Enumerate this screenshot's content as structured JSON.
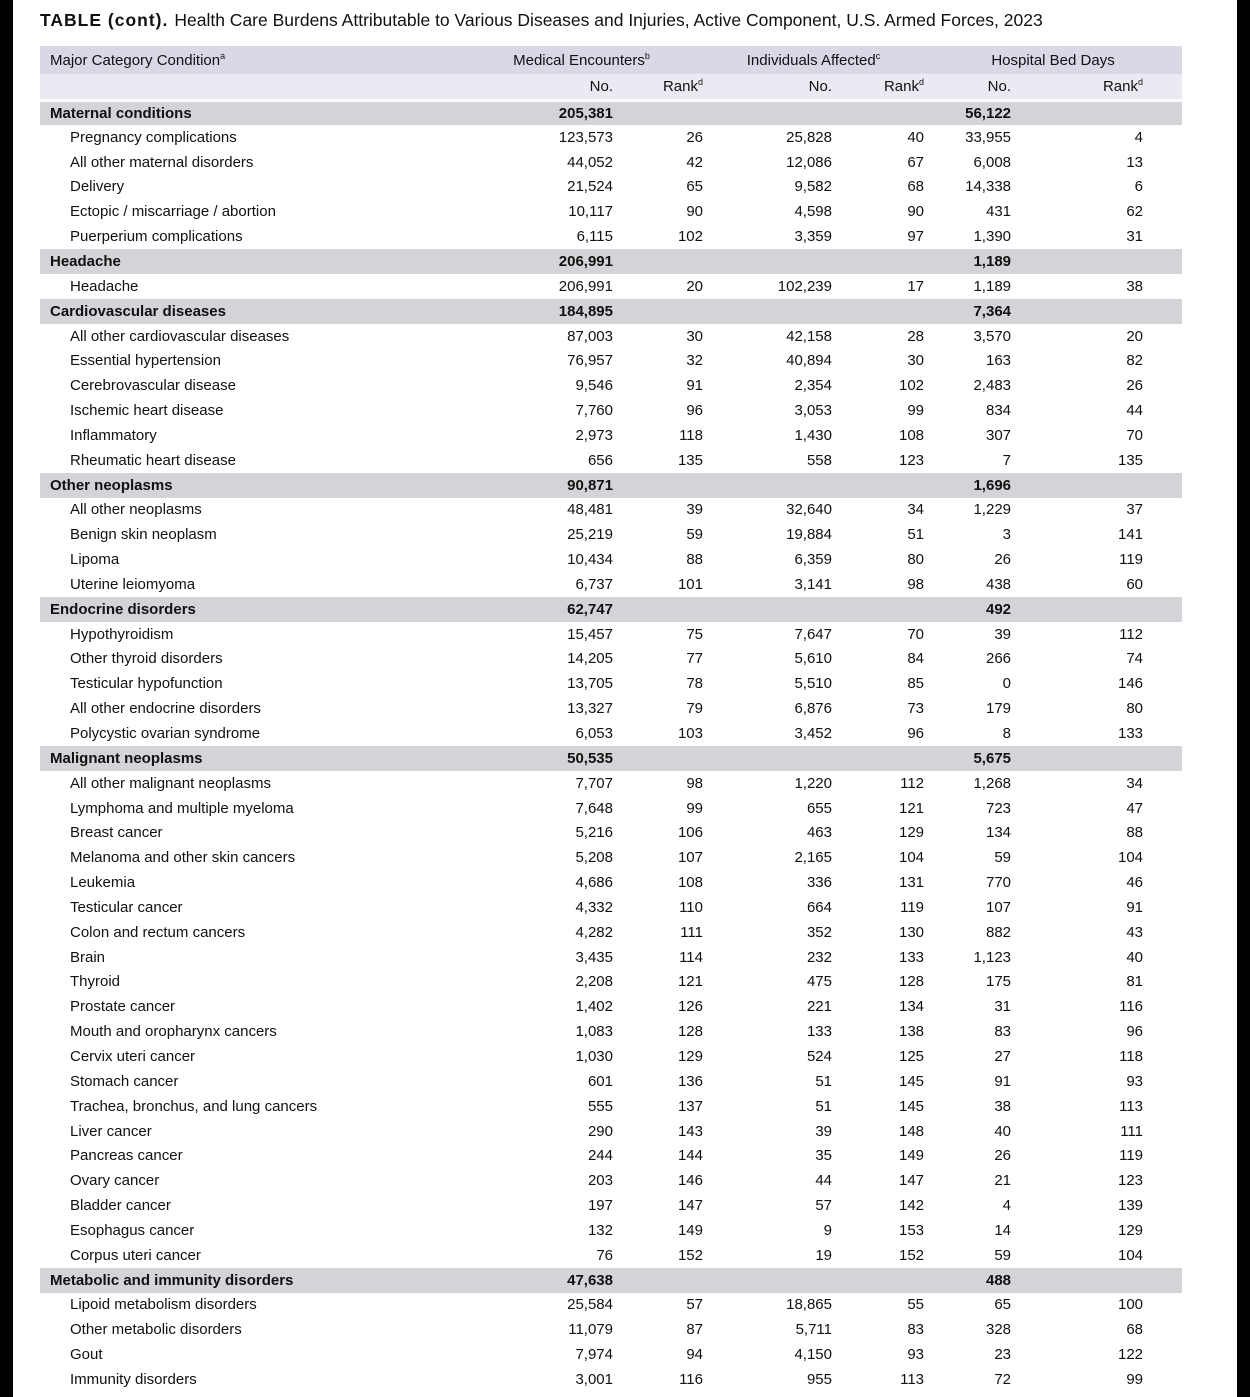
{
  "page": {
    "title_label": "TABLE (cont).",
    "title_text": "Health Care Burdens Attributable to Various Diseases and Injuries, Active Component, U.S. Armed Forces, 2023"
  },
  "colors": {
    "header_row1_bg": "#d8d9e5",
    "header_row2_bg": "#eaeaf2",
    "category_row_bg": "#d5d3d8",
    "edge_bar": "#000000",
    "text": "#111111"
  },
  "table": {
    "condition_header": {
      "label": "Major Category Condition",
      "sup": "a"
    },
    "group_headers": [
      {
        "label": "Medical Encounters",
        "sup": "b"
      },
      {
        "label": "Individuals Affected",
        "sup": "c"
      },
      {
        "label": "Hospital Bed Days",
        "sup": ""
      }
    ],
    "subheaders": {
      "no_label": "No.",
      "rank_label": "Rank",
      "rank_sup": "d"
    },
    "columns": [
      "row_type",
      "condition",
      "medical_encounters_no",
      "medical_encounters_rank",
      "individuals_affected_no",
      "individuals_affected_rank",
      "hospital_bed_days_no",
      "hospital_bed_days_rank"
    ],
    "rows": [
      [
        "category",
        "Maternal conditions",
        "205,381",
        "",
        "",
        "",
        "56,122",
        ""
      ],
      [
        "condition",
        "Pregnancy complications",
        "123,573",
        "26",
        "25,828",
        "40",
        "33,955",
        "4"
      ],
      [
        "condition",
        "All other maternal disorders",
        "44,052",
        "42",
        "12,086",
        "67",
        "6,008",
        "13"
      ],
      [
        "condition",
        "Delivery",
        "21,524",
        "65",
        "9,582",
        "68",
        "14,338",
        "6"
      ],
      [
        "condition",
        "Ectopic / miscarriage / abortion",
        "10,117",
        "90",
        "4,598",
        "90",
        "431",
        "62"
      ],
      [
        "condition",
        "Puerperium complications",
        "6,115",
        "102",
        "3,359",
        "97",
        "1,390",
        "31"
      ],
      [
        "category",
        "Headache",
        "206,991",
        "",
        "",
        "",
        "1,189",
        ""
      ],
      [
        "condition",
        "Headache",
        "206,991",
        "20",
        "102,239",
        "17",
        "1,189",
        "38"
      ],
      [
        "category",
        "Cardiovascular diseases",
        "184,895",
        "",
        "",
        "",
        "7,364",
        ""
      ],
      [
        "condition",
        "All other cardiovascular diseases",
        "87,003",
        "30",
        "42,158",
        "28",
        "3,570",
        "20"
      ],
      [
        "condition",
        "Essential hypertension",
        "76,957",
        "32",
        "40,894",
        "30",
        "163",
        "82"
      ],
      [
        "condition",
        "Cerebrovascular disease",
        "9,546",
        "91",
        "2,354",
        "102",
        "2,483",
        "26"
      ],
      [
        "condition",
        "Ischemic heart disease",
        "7,760",
        "96",
        "3,053",
        "99",
        "834",
        "44"
      ],
      [
        "condition",
        "Inflammatory",
        "2,973",
        "118",
        "1,430",
        "108",
        "307",
        "70"
      ],
      [
        "condition",
        "Rheumatic heart disease",
        "656",
        "135",
        "558",
        "123",
        "7",
        "135"
      ],
      [
        "category",
        "Other neoplasms",
        "90,871",
        "",
        "",
        "",
        "1,696",
        ""
      ],
      [
        "condition",
        "All other neoplasms",
        "48,481",
        "39",
        "32,640",
        "34",
        "1,229",
        "37"
      ],
      [
        "condition",
        "Benign skin neoplasm",
        "25,219",
        "59",
        "19,884",
        "51",
        "3",
        "141"
      ],
      [
        "condition",
        "Lipoma",
        "10,434",
        "88",
        "6,359",
        "80",
        "26",
        "119"
      ],
      [
        "condition",
        "Uterine leiomyoma",
        "6,737",
        "101",
        "3,141",
        "98",
        "438",
        "60"
      ],
      [
        "category",
        "Endocrine disorders",
        "62,747",
        "",
        "",
        "",
        "492",
        ""
      ],
      [
        "condition",
        "Hypothyroidism",
        "15,457",
        "75",
        "7,647",
        "70",
        "39",
        "112"
      ],
      [
        "condition",
        "Other thyroid disorders",
        "14,205",
        "77",
        "5,610",
        "84",
        "266",
        "74"
      ],
      [
        "condition",
        "Testicular hypofunction",
        "13,705",
        "78",
        "5,510",
        "85",
        "0",
        "146"
      ],
      [
        "condition",
        "All other endocrine disorders",
        "13,327",
        "79",
        "6,876",
        "73",
        "179",
        "80"
      ],
      [
        "condition",
        "Polycystic ovarian syndrome",
        "6,053",
        "103",
        "3,452",
        "96",
        "8",
        "133"
      ],
      [
        "category",
        "Malignant neoplasms",
        "50,535",
        "",
        "",
        "",
        "5,675",
        ""
      ],
      [
        "condition",
        "All other malignant neoplasms",
        "7,707",
        "98",
        "1,220",
        "112",
        "1,268",
        "34"
      ],
      [
        "condition",
        "Lymphoma and multiple myeloma",
        "7,648",
        "99",
        "655",
        "121",
        "723",
        "47"
      ],
      [
        "condition",
        "Breast cancer",
        "5,216",
        "106",
        "463",
        "129",
        "134",
        "88"
      ],
      [
        "condition",
        "Melanoma and other skin cancers",
        "5,208",
        "107",
        "2,165",
        "104",
        "59",
        "104"
      ],
      [
        "condition",
        "Leukemia",
        "4,686",
        "108",
        "336",
        "131",
        "770",
        "46"
      ],
      [
        "condition",
        "Testicular cancer",
        "4,332",
        "110",
        "664",
        "119",
        "107",
        "91"
      ],
      [
        "condition",
        "Colon and rectum cancers",
        "4,282",
        "111",
        "352",
        "130",
        "882",
        "43"
      ],
      [
        "condition",
        "Brain",
        "3,435",
        "114",
        "232",
        "133",
        "1,123",
        "40"
      ],
      [
        "condition",
        "Thyroid",
        "2,208",
        "121",
        "475",
        "128",
        "175",
        "81"
      ],
      [
        "condition",
        "Prostate cancer",
        "1,402",
        "126",
        "221",
        "134",
        "31",
        "116"
      ],
      [
        "condition",
        "Mouth and oropharynx cancers",
        "1,083",
        "128",
        "133",
        "138",
        "83",
        "96"
      ],
      [
        "condition",
        "Cervix uteri cancer",
        "1,030",
        "129",
        "524",
        "125",
        "27",
        "118"
      ],
      [
        "condition",
        "Stomach cancer",
        "601",
        "136",
        "51",
        "145",
        "91",
        "93"
      ],
      [
        "condition",
        "Trachea, bronchus, and lung cancers",
        "555",
        "137",
        "51",
        "145",
        "38",
        "113"
      ],
      [
        "condition",
        "Liver cancer",
        "290",
        "143",
        "39",
        "148",
        "40",
        "111"
      ],
      [
        "condition",
        "Pancreas cancer",
        "244",
        "144",
        "35",
        "149",
        "26",
        "119"
      ],
      [
        "condition",
        "Ovary cancer",
        "203",
        "146",
        "44",
        "147",
        "21",
        "123"
      ],
      [
        "condition",
        "Bladder cancer",
        "197",
        "147",
        "57",
        "142",
        "4",
        "139"
      ],
      [
        "condition",
        "Esophagus cancer",
        "132",
        "149",
        "9",
        "153",
        "14",
        "129"
      ],
      [
        "condition",
        "Corpus uteri cancer",
        "76",
        "152",
        "19",
        "152",
        "59",
        "104"
      ],
      [
        "category",
        "Metabolic and immunity disorders",
        "47,638",
        "",
        "",
        "",
        "488",
        ""
      ],
      [
        "condition",
        "Lipoid metabolism disorders",
        "25,584",
        "57",
        "18,865",
        "55",
        "65",
        "100"
      ],
      [
        "condition",
        "Other metabolic disorders",
        "11,079",
        "87",
        "5,711",
        "83",
        "328",
        "68"
      ],
      [
        "condition",
        "Gout",
        "7,974",
        "94",
        "4,150",
        "93",
        "23",
        "122"
      ],
      [
        "condition",
        "Immunity disorders",
        "3,001",
        "116",
        "955",
        "113",
        "72",
        "99"
      ]
    ]
  }
}
